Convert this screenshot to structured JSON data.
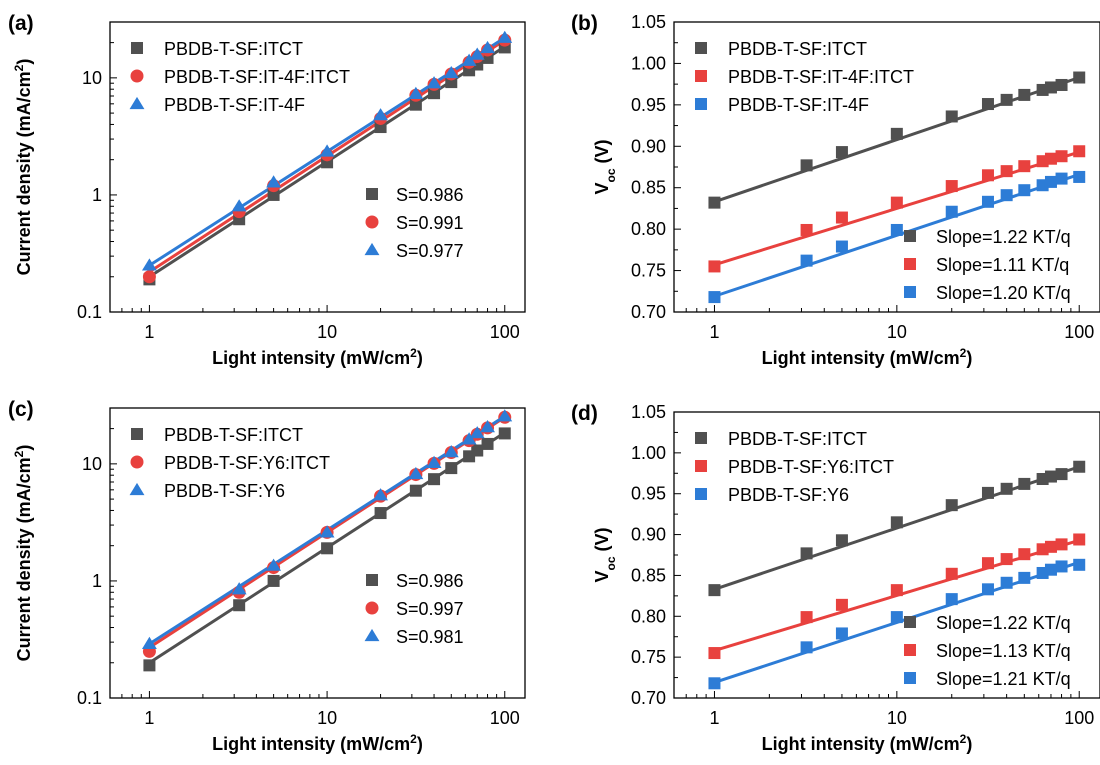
{
  "chart_data": [
    {
      "panel": "(a)",
      "type": "scatter",
      "xscale": "log",
      "yscale": "log",
      "xlabel": "Light intensity (mW/cm",
      "xlabel_sup": "2",
      "xlabel_end": ")",
      "ylabel": "Current density (mA/cm",
      "ylabel_sup": "2",
      "ylabel_end": ")",
      "xlim": [
        0.6,
        130
      ],
      "ylim": [
        0.1,
        30
      ],
      "xticks": [
        1,
        10,
        100
      ],
      "xtick_labels": [
        "1",
        "10",
        "100"
      ],
      "yticks": [
        0.1,
        1,
        10
      ],
      "ytick_labels": [
        "0.1",
        "1",
        "10"
      ],
      "legend_position": "top-left",
      "fit_legend_position": "center-right",
      "series": [
        {
          "name": "PBDB-T-SF:ITCT",
          "marker": "square",
          "color": "#505050",
          "x": [
            1,
            3.2,
            5,
            10,
            20,
            31.6,
            40,
            50,
            63,
            70,
            80,
            100
          ],
          "y": [
            0.19,
            0.62,
            1.0,
            1.9,
            3.8,
            5.9,
            7.4,
            9.2,
            11.6,
            13.0,
            14.8,
            18.2
          ],
          "fit": {
            "x": [
              1,
              100
            ],
            "y": [
              0.2,
              18.5
            ]
          },
          "fit_label": "S=0.986"
        },
        {
          "name": "PBDB-T-SF:IT-4F:ITCT",
          "marker": "circle",
          "color": "#e8413e",
          "x": [
            1,
            3.2,
            5,
            10,
            20,
            31.6,
            40,
            50,
            63,
            70,
            80,
            100
          ],
          "y": [
            0.2,
            0.72,
            1.2,
            2.2,
            4.5,
            7.1,
            8.8,
            10.8,
            13.6,
            15.2,
            17.3,
            21.0
          ],
          "fit": {
            "x": [
              1,
              100
            ],
            "y": [
              0.22,
              21
            ]
          },
          "fit_label": "S=0.991"
        },
        {
          "name": "PBDB-T-SF:IT-4F",
          "marker": "triangle",
          "color": "#2d7cd6",
          "x": [
            1,
            3.2,
            5,
            10,
            20,
            31.6,
            40,
            50,
            63,
            70,
            80,
            100
          ],
          "y": [
            0.25,
            0.8,
            1.28,
            2.35,
            4.8,
            7.3,
            9.0,
            11.0,
            14.0,
            15.8,
            18.0,
            22.0
          ],
          "fit": {
            "x": [
              1,
              100
            ],
            "y": [
              0.25,
              22
            ]
          },
          "fit_label": "S=0.977"
        }
      ]
    },
    {
      "panel": "(b)",
      "type": "scatter",
      "xscale": "log",
      "yscale": "linear",
      "xlabel": "Light intensity (mW/cm",
      "xlabel_sup": "2",
      "xlabel_end": ")",
      "ylabel": "V",
      "ylabel_sub": "oc",
      "ylabel_end": " (V)",
      "xlim": [
        0.6,
        130
      ],
      "ylim": [
        0.7,
        1.05
      ],
      "xticks": [
        1,
        10,
        100
      ],
      "xtick_labels": [
        "1",
        "10",
        "100"
      ],
      "yticks": [
        0.7,
        0.75,
        0.8,
        0.85,
        0.9,
        0.95,
        1.0,
        1.05
      ],
      "ytick_labels": [
        "0.70",
        "0.75",
        "0.80",
        "0.85",
        "0.90",
        "0.95",
        "1.00",
        "1.05"
      ],
      "legend_position": "top-left",
      "fit_legend_position": "bottom-right",
      "series": [
        {
          "name": "PBDB-T-SF:ITCT",
          "marker": "square",
          "color": "#505050",
          "x": [
            1,
            3.2,
            5,
            10,
            20,
            31.6,
            40,
            50,
            63,
            70,
            80,
            100
          ],
          "y": [
            0.832,
            0.877,
            0.893,
            0.915,
            0.936,
            0.951,
            0.956,
            0.962,
            0.968,
            0.971,
            0.974,
            0.983
          ],
          "fit": {
            "x": [
              1,
              100
            ],
            "y": [
              0.833,
              0.983
            ]
          },
          "fit_label": "Slope=1.22 KT/q"
        },
        {
          "name": "PBDB-T-SF:IT-4F:ITCT",
          "marker": "square",
          "color": "#e8413e",
          "x": [
            1,
            3.2,
            5,
            10,
            20,
            31.6,
            40,
            50,
            63,
            70,
            80,
            100
          ],
          "y": [
            0.755,
            0.799,
            0.814,
            0.832,
            0.852,
            0.865,
            0.87,
            0.876,
            0.882,
            0.885,
            0.888,
            0.894
          ],
          "fit": {
            "x": [
              1,
              100
            ],
            "y": [
              0.757,
              0.893
            ]
          },
          "fit_label": "Slope=1.11 KT/q"
        },
        {
          "name": "PBDB-T-SF:IT-4F",
          "marker": "square",
          "color": "#2d7cd6",
          "x": [
            1,
            3.2,
            5,
            10,
            20,
            31.6,
            40,
            50,
            63,
            70,
            80,
            100
          ],
          "y": [
            0.718,
            0.762,
            0.779,
            0.799,
            0.821,
            0.833,
            0.841,
            0.847,
            0.853,
            0.857,
            0.861,
            0.863
          ],
          "fit": {
            "x": [
              1,
              100
            ],
            "y": [
              0.719,
              0.866
            ]
          },
          "fit_label": "Slope=1.20 KT/q"
        }
      ]
    },
    {
      "panel": "(c)",
      "type": "scatter",
      "xscale": "log",
      "yscale": "log",
      "xlabel": "Light intensity (mW/cm",
      "xlabel_sup": "2",
      "xlabel_end": ")",
      "ylabel": "Current density (mA/cm",
      "ylabel_sup": "2",
      "ylabel_end": ")",
      "xlim": [
        0.6,
        130
      ],
      "ylim": [
        0.1,
        30
      ],
      "xticks": [
        1,
        10,
        100
      ],
      "xtick_labels": [
        "1",
        "10",
        "100"
      ],
      "yticks": [
        0.1,
        1,
        10
      ],
      "ytick_labels": [
        "0.1",
        "1",
        "10"
      ],
      "legend_position": "top-left",
      "fit_legend_position": "center-right",
      "series": [
        {
          "name": "PBDB-T-SF:ITCT",
          "marker": "square",
          "color": "#505050",
          "x": [
            1,
            3.2,
            5,
            10,
            20,
            31.6,
            40,
            50,
            63,
            70,
            80,
            100
          ],
          "y": [
            0.19,
            0.62,
            1.0,
            1.9,
            3.8,
            5.9,
            7.4,
            9.2,
            11.6,
            13.0,
            14.8,
            18.2
          ],
          "fit": {
            "x": [
              1,
              100
            ],
            "y": [
              0.2,
              18.5
            ]
          },
          "fit_label": "S=0.986"
        },
        {
          "name": "PBDB-T-SF:Y6:ITCT",
          "marker": "circle",
          "color": "#e8413e",
          "x": [
            1,
            3.2,
            5,
            10,
            20,
            31.6,
            40,
            50,
            63,
            70,
            80,
            100
          ],
          "y": [
            0.25,
            0.8,
            1.3,
            2.6,
            5.3,
            8.1,
            10.1,
            12.5,
            15.8,
            17.9,
            20.3,
            25.0
          ],
          "fit": {
            "x": [
              1,
              100
            ],
            "y": [
              0.27,
              25
            ]
          },
          "fit_label": "S=0.997"
        },
        {
          "name": "PBDB-T-SF:Y6",
          "marker": "triangle",
          "color": "#2d7cd6",
          "x": [
            1,
            3.2,
            5,
            10,
            20,
            31.6,
            40,
            50,
            63,
            70,
            80,
            100
          ],
          "y": [
            0.29,
            0.85,
            1.35,
            2.6,
            5.4,
            8.2,
            10.2,
            12.6,
            16.2,
            18.3,
            20.6,
            25.5
          ],
          "fit": {
            "x": [
              1,
              100
            ],
            "y": [
              0.29,
              25.5
            ]
          },
          "fit_label": "S=0.981"
        }
      ]
    },
    {
      "panel": "(d)",
      "type": "scatter",
      "xscale": "log",
      "yscale": "linear",
      "xlabel": "Light intensity (mW/cm",
      "xlabel_sup": "2",
      "xlabel_end": ")",
      "ylabel": "V",
      "ylabel_sub": "oc",
      "ylabel_end": " (V)",
      "xlim": [
        0.6,
        130
      ],
      "ylim": [
        0.7,
        1.05
      ],
      "xticks": [
        1,
        10,
        100
      ],
      "xtick_labels": [
        "1",
        "10",
        "100"
      ],
      "yticks": [
        0.7,
        0.75,
        0.8,
        0.85,
        0.9,
        0.95,
        1.0,
        1.05
      ],
      "ytick_labels": [
        "0.70",
        "0.75",
        "0.80",
        "0.85",
        "0.90",
        "0.95",
        "1.00",
        "1.05"
      ],
      "legend_position": "top-left",
      "fit_legend_position": "bottom-right",
      "series": [
        {
          "name": "PBDB-T-SF:ITCT",
          "marker": "square",
          "color": "#505050",
          "x": [
            1,
            3.2,
            5,
            10,
            20,
            31.6,
            40,
            50,
            63,
            70,
            80,
            100
          ],
          "y": [
            0.832,
            0.877,
            0.893,
            0.915,
            0.936,
            0.951,
            0.956,
            0.962,
            0.968,
            0.971,
            0.974,
            0.983
          ],
          "fit": {
            "x": [
              1,
              100
            ],
            "y": [
              0.833,
              0.983
            ]
          },
          "fit_label": "Slope=1.22 KT/q"
        },
        {
          "name": "PBDB-T-SF:Y6:ITCT",
          "marker": "square",
          "color": "#e8413e",
          "x": [
            1,
            3.2,
            5,
            10,
            20,
            31.6,
            40,
            50,
            63,
            70,
            80,
            100
          ],
          "y": [
            0.755,
            0.799,
            0.814,
            0.832,
            0.852,
            0.865,
            0.87,
            0.876,
            0.882,
            0.885,
            0.888,
            0.894
          ],
          "fit": {
            "x": [
              1,
              100
            ],
            "y": [
              0.758,
              0.893
            ]
          },
          "fit_label": "Slope=1.13 KT/q"
        },
        {
          "name": "PBDB-T-SF:Y6",
          "marker": "square",
          "color": "#2d7cd6",
          "x": [
            1,
            3.2,
            5,
            10,
            20,
            31.6,
            40,
            50,
            63,
            70,
            80,
            100
          ],
          "y": [
            0.718,
            0.762,
            0.779,
            0.799,
            0.821,
            0.833,
            0.841,
            0.847,
            0.853,
            0.857,
            0.861,
            0.863
          ],
          "fit": {
            "x": [
              1,
              100
            ],
            "y": [
              0.719,
              0.866
            ]
          },
          "fit_label": "Slope=1.21 KT/q"
        }
      ]
    }
  ]
}
